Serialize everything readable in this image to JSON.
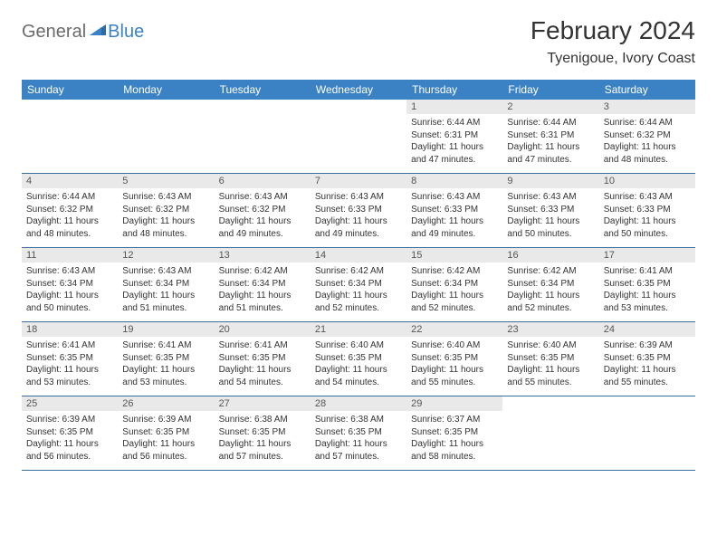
{
  "logo": {
    "part1": "General",
    "part2": "Blue"
  },
  "title": "February 2024",
  "location": "Tyenigoue, Ivory Coast",
  "colors": {
    "header_bg": "#3b82c4",
    "header_text": "#ffffff",
    "daynum_bg": "#e9e9e9",
    "border": "#3b6ea0",
    "logo_gray": "#6b6b6b",
    "logo_blue": "#3b82c4"
  },
  "days_of_week": [
    "Sunday",
    "Monday",
    "Tuesday",
    "Wednesday",
    "Thursday",
    "Friday",
    "Saturday"
  ],
  "weeks": [
    [
      null,
      null,
      null,
      null,
      {
        "n": "1",
        "sunrise": "6:44 AM",
        "sunset": "6:31 PM",
        "daylight": "11 hours and 47 minutes."
      },
      {
        "n": "2",
        "sunrise": "6:44 AM",
        "sunset": "6:31 PM",
        "daylight": "11 hours and 47 minutes."
      },
      {
        "n": "3",
        "sunrise": "6:44 AM",
        "sunset": "6:32 PM",
        "daylight": "11 hours and 48 minutes."
      }
    ],
    [
      {
        "n": "4",
        "sunrise": "6:44 AM",
        "sunset": "6:32 PM",
        "daylight": "11 hours and 48 minutes."
      },
      {
        "n": "5",
        "sunrise": "6:43 AM",
        "sunset": "6:32 PM",
        "daylight": "11 hours and 48 minutes."
      },
      {
        "n": "6",
        "sunrise": "6:43 AM",
        "sunset": "6:32 PM",
        "daylight": "11 hours and 49 minutes."
      },
      {
        "n": "7",
        "sunrise": "6:43 AM",
        "sunset": "6:33 PM",
        "daylight": "11 hours and 49 minutes."
      },
      {
        "n": "8",
        "sunrise": "6:43 AM",
        "sunset": "6:33 PM",
        "daylight": "11 hours and 49 minutes."
      },
      {
        "n": "9",
        "sunrise": "6:43 AM",
        "sunset": "6:33 PM",
        "daylight": "11 hours and 50 minutes."
      },
      {
        "n": "10",
        "sunrise": "6:43 AM",
        "sunset": "6:33 PM",
        "daylight": "11 hours and 50 minutes."
      }
    ],
    [
      {
        "n": "11",
        "sunrise": "6:43 AM",
        "sunset": "6:34 PM",
        "daylight": "11 hours and 50 minutes."
      },
      {
        "n": "12",
        "sunrise": "6:43 AM",
        "sunset": "6:34 PM",
        "daylight": "11 hours and 51 minutes."
      },
      {
        "n": "13",
        "sunrise": "6:42 AM",
        "sunset": "6:34 PM",
        "daylight": "11 hours and 51 minutes."
      },
      {
        "n": "14",
        "sunrise": "6:42 AM",
        "sunset": "6:34 PM",
        "daylight": "11 hours and 52 minutes."
      },
      {
        "n": "15",
        "sunrise": "6:42 AM",
        "sunset": "6:34 PM",
        "daylight": "11 hours and 52 minutes."
      },
      {
        "n": "16",
        "sunrise": "6:42 AM",
        "sunset": "6:34 PM",
        "daylight": "11 hours and 52 minutes."
      },
      {
        "n": "17",
        "sunrise": "6:41 AM",
        "sunset": "6:35 PM",
        "daylight": "11 hours and 53 minutes."
      }
    ],
    [
      {
        "n": "18",
        "sunrise": "6:41 AM",
        "sunset": "6:35 PM",
        "daylight": "11 hours and 53 minutes."
      },
      {
        "n": "19",
        "sunrise": "6:41 AM",
        "sunset": "6:35 PM",
        "daylight": "11 hours and 53 minutes."
      },
      {
        "n": "20",
        "sunrise": "6:41 AM",
        "sunset": "6:35 PM",
        "daylight": "11 hours and 54 minutes."
      },
      {
        "n": "21",
        "sunrise": "6:40 AM",
        "sunset": "6:35 PM",
        "daylight": "11 hours and 54 minutes."
      },
      {
        "n": "22",
        "sunrise": "6:40 AM",
        "sunset": "6:35 PM",
        "daylight": "11 hours and 55 minutes."
      },
      {
        "n": "23",
        "sunrise": "6:40 AM",
        "sunset": "6:35 PM",
        "daylight": "11 hours and 55 minutes."
      },
      {
        "n": "24",
        "sunrise": "6:39 AM",
        "sunset": "6:35 PM",
        "daylight": "11 hours and 55 minutes."
      }
    ],
    [
      {
        "n": "25",
        "sunrise": "6:39 AM",
        "sunset": "6:35 PM",
        "daylight": "11 hours and 56 minutes."
      },
      {
        "n": "26",
        "sunrise": "6:39 AM",
        "sunset": "6:35 PM",
        "daylight": "11 hours and 56 minutes."
      },
      {
        "n": "27",
        "sunrise": "6:38 AM",
        "sunset": "6:35 PM",
        "daylight": "11 hours and 57 minutes."
      },
      {
        "n": "28",
        "sunrise": "6:38 AM",
        "sunset": "6:35 PM",
        "daylight": "11 hours and 57 minutes."
      },
      {
        "n": "29",
        "sunrise": "6:37 AM",
        "sunset": "6:35 PM",
        "daylight": "11 hours and 58 minutes."
      },
      null,
      null
    ]
  ],
  "labels": {
    "sunrise": "Sunrise:",
    "sunset": "Sunset:",
    "daylight": "Daylight:"
  }
}
